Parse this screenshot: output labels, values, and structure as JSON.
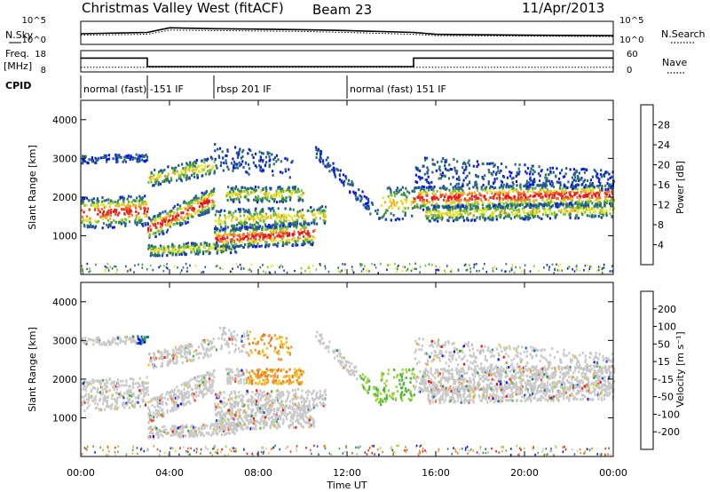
{
  "header": {
    "site": "Christmas Valley West (fitACF)",
    "beam": "Beam 23",
    "date": "11/Apr/2013"
  },
  "left_labels": {
    "nsky": "N.Sky",
    "freq_1": "Freq.",
    "freq_2": "[MHz]",
    "cpid": "CPID"
  },
  "right_labels": {
    "nsearch": "N.Search",
    "nave": "Nave"
  },
  "cpid_modes": [
    {
      "label": "normal (fast) -151 IF",
      "start": 0,
      "end": 3
    },
    {
      "label": "rbsp 201 IF",
      "start": 6,
      "end": 12
    },
    {
      "label": "normal (fast) 151 IF",
      "start": 12,
      "end": 24
    }
  ],
  "chart_data": [
    {
      "id": "noise",
      "type": "line",
      "yticks": [
        "10^5",
        "10^0"
      ],
      "right_yticks": [
        "10^5",
        "10^0"
      ],
      "series": [
        {
          "style": "solid",
          "x": [
            0,
            3,
            4,
            6,
            8,
            10,
            12,
            15,
            16,
            20,
            24
          ],
          "y": [
            2.3,
            2.6,
            3.6,
            3.4,
            3.3,
            3.2,
            3.0,
            2.6,
            2.2,
            2.0,
            1.9
          ]
        },
        {
          "style": "dotted",
          "x": [
            0,
            3,
            4,
            6,
            8,
            10,
            12,
            15,
            16,
            20,
            24
          ],
          "y": [
            2.0,
            2.2,
            3.1,
            3.0,
            2.9,
            2.8,
            2.6,
            2.2,
            1.9,
            1.8,
            1.7
          ]
        }
      ]
    },
    {
      "id": "frequency",
      "type": "line",
      "yticks": [
        "18",
        "8"
      ],
      "right_yticks": [
        "60",
        "0"
      ],
      "series": [
        {
          "style": "solid",
          "x": [
            0,
            3,
            3,
            15,
            15,
            24
          ],
          "y": [
            14.5,
            14.5,
            10.5,
            10.5,
            14.5,
            14.5
          ]
        },
        {
          "style": "dotted",
          "x": [
            0,
            24
          ],
          "y": [
            10.2,
            10.2
          ]
        }
      ]
    },
    {
      "id": "power",
      "type": "heatmap",
      "xlim": [
        0,
        24
      ],
      "ylim": [
        0,
        4500
      ],
      "ylabel": "Slant Range [km]",
      "yticks": [
        "1000",
        "2000",
        "3000",
        "4000"
      ],
      "xticks": [
        "00:00",
        "04:00",
        "08:00",
        "12:00",
        "16:00",
        "20:00",
        "00:00"
      ],
      "colorbar": {
        "label": "Power [dB]",
        "ticks": [
          "4",
          "8",
          "12",
          "16",
          "20",
          "24",
          "28"
        ],
        "colors": [
          "#0a14e6",
          "#1b4fa6",
          "#2f6e6e",
          "#3c8c46",
          "#79c040",
          "#e6e62a",
          "#f0b428",
          "#f07828",
          "#e63c1e",
          "#e6141e"
        ]
      }
    },
    {
      "id": "velocity",
      "type": "heatmap",
      "xlim": [
        0,
        24
      ],
      "ylim": [
        0,
        4500
      ],
      "xlabel": "Time UT",
      "ylabel": "Slant Range [km]",
      "yticks": [
        "1000",
        "2000",
        "3000",
        "4000"
      ],
      "xticks": [
        "00:00",
        "04:00",
        "08:00",
        "12:00",
        "16:00",
        "20:00",
        "00:00"
      ],
      "colorbar": {
        "label": "Velocity [m s⁻¹]",
        "ticks": [
          "200",
          "100",
          "50",
          "15",
          "-15",
          "-50",
          "-100",
          "-200"
        ],
        "colors": [
          "#0a14e6",
          "#1c5fb8",
          "#2f8a7a",
          "#4bb43c",
          "#9fd23c",
          "#c8c8c8",
          "#c8c8c8",
          "#f0c828",
          "#f0a028",
          "#f07828",
          "#e64628",
          "#e6141e"
        ]
      }
    }
  ]
}
